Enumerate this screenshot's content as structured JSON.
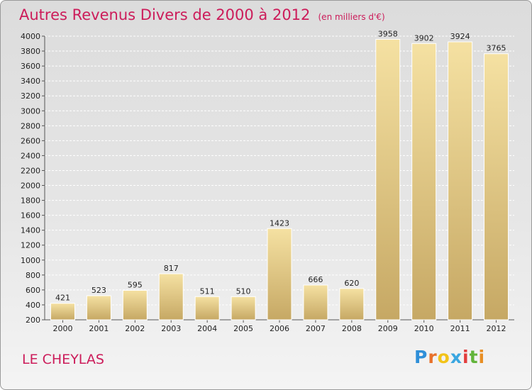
{
  "title": "Autres Revenus Divers de 2000 à 2012",
  "subtitle": "(en milliers d'€)",
  "place": "LE CHEYLAS",
  "logo": {
    "letters": [
      "P",
      "r",
      "o",
      "x",
      "i",
      "t",
      "i"
    ],
    "colors": [
      "#2f8fd8",
      "#e8712b",
      "#f2c318",
      "#3aa6e0",
      "#e23d3d",
      "#62b43a",
      "#e88e23"
    ]
  },
  "colors": {
    "accent": "#cc1c5a",
    "bar_light": "#f3dc9a",
    "bar_dark": "#c9ad6a"
  },
  "chart_data": {
    "type": "bar",
    "categories": [
      "2000",
      "2001",
      "2002",
      "2003",
      "2004",
      "2005",
      "2006",
      "2007",
      "2008",
      "2009",
      "2010",
      "2011",
      "2012"
    ],
    "values": [
      421,
      523,
      595,
      817,
      511,
      510,
      1423,
      666,
      620,
      3958,
      3902,
      3924,
      3765
    ],
    "yticks": [
      200,
      400,
      600,
      800,
      1000,
      1200,
      1400,
      1600,
      1800,
      2000,
      2200,
      2400,
      2600,
      2800,
      3000,
      3200,
      3400,
      3600,
      3800,
      4000
    ],
    "ylim": [
      200,
      4000
    ],
    "grid": true,
    "legend": "none"
  }
}
